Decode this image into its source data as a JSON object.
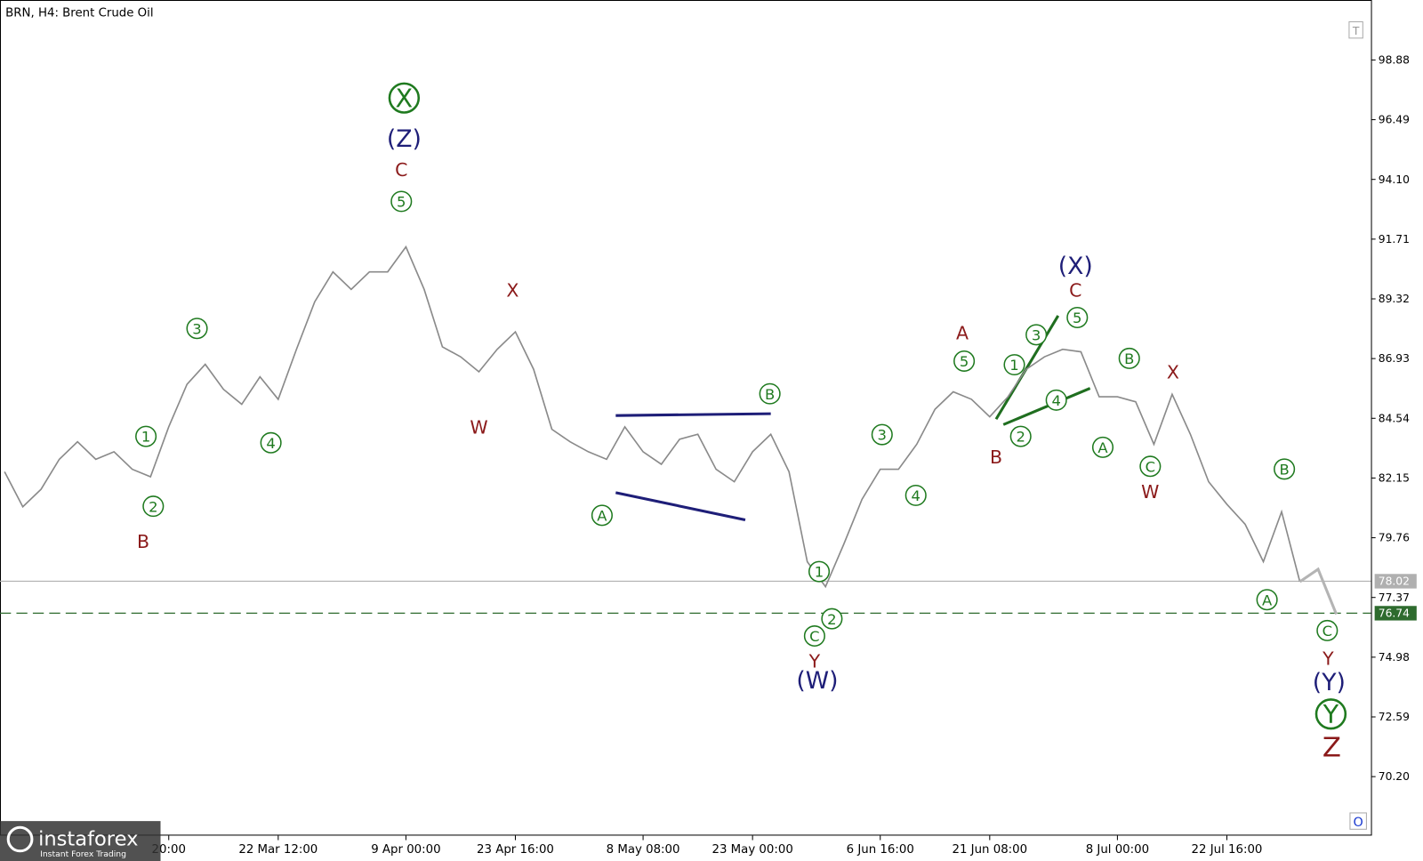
{
  "chart_data": {
    "type": "line",
    "title": "BRN, H4:  Brent Crude Oil",
    "categories": [
      null,
      null,
      null,
      null,
      null,
      null,
      null,
      null,
      null,
      "20:00",
      null,
      null,
      null,
      null,
      null,
      "22 Mar 12:00",
      null,
      null,
      null,
      null,
      null,
      null,
      "9 Apr 00:00",
      null,
      null,
      null,
      null,
      null,
      "23 Apr 16:00",
      null,
      null,
      null,
      null,
      null,
      null,
      "8 May 08:00",
      null,
      null,
      null,
      null,
      null,
      "23 May 00:00",
      null,
      null,
      null,
      null,
      null,
      null,
      "6 Jun 16:00",
      null,
      null,
      null,
      null,
      null,
      "21 Jun 08:00",
      null,
      null,
      null,
      null,
      null,
      null,
      "8 Jul 00:00",
      null,
      null,
      null,
      null,
      null,
      "22 Jul 16:00",
      null,
      null,
      null,
      null,
      null,
      null
    ],
    "series": [
      {
        "color": "#8a8a8a",
        "values": [
          82.4,
          81.0,
          81.7,
          82.9,
          83.6,
          82.9,
          83.2,
          82.5,
          82.2,
          84.2,
          85.9,
          86.7,
          85.7,
          85.1,
          86.2,
          85.3,
          87.3,
          89.2,
          90.4,
          89.7,
          90.4,
          90.4,
          91.4,
          89.7,
          87.4,
          87.0,
          86.4,
          87.3,
          88.0,
          86.5,
          84.1,
          83.6,
          83.2,
          82.9,
          84.2,
          83.2,
          82.7,
          83.7,
          83.9,
          82.5,
          82.0,
          83.2,
          83.9,
          82.4,
          78.8,
          77.8,
          79.5,
          81.3,
          82.5,
          82.5,
          83.5,
          84.9,
          85.6,
          85.3,
          84.6,
          85.4,
          86.5,
          87.0,
          87.3,
          87.2,
          85.4,
          85.4,
          85.2,
          83.5,
          85.5,
          83.9,
          82.0,
          81.1,
          80.3,
          78.8,
          80.8,
          78.0,
          null,
          null
        ]
      },
      {
        "color": "#b4b4b4",
        "values": [
          null,
          null,
          null,
          null,
          null,
          null,
          null,
          null,
          null,
          null,
          null,
          null,
          null,
          null,
          null,
          null,
          null,
          null,
          null,
          null,
          null,
          null,
          null,
          null,
          null,
          null,
          null,
          null,
          null,
          null,
          null,
          null,
          null,
          null,
          null,
          null,
          null,
          null,
          null,
          null,
          null,
          null,
          null,
          null,
          null,
          null,
          null,
          null,
          null,
          null,
          null,
          null,
          null,
          null,
          null,
          null,
          null,
          null,
          null,
          null,
          null,
          null,
          null,
          null,
          null,
          null,
          null,
          null,
          null,
          null,
          null,
          78.0,
          78.5,
          76.7
        ]
      }
    ],
    "ylim": [
      67.84,
      101.28
    ],
    "yticks": [
      {
        "value": 70.2,
        "label": "70.20"
      },
      72.59,
      74.98,
      77.37,
      79.76,
      82.15,
      84.54,
      86.93,
      89.32,
      91.71,
      {
        "value": 94.1,
        "label": "94.10"
      },
      96.49,
      98.88
    ],
    "price_lines": [
      {
        "value": 78.02,
        "color": "#b0b0b0",
        "dashed": false
      },
      {
        "value": 76.74,
        "color": "#2e6b2e",
        "dashed": true
      }
    ],
    "annotations": [
      "X",
      "(Z)",
      "C",
      "5",
      "3",
      "1",
      "2",
      "B",
      "4",
      "X",
      "W",
      "B",
      "A",
      "1",
      "2",
      "C",
      "Y",
      "(W)",
      "3",
      "4",
      "A",
      "5",
      "B",
      "1",
      "3",
      "2",
      "4",
      "(X)",
      "C",
      "5",
      "B",
      "A",
      "C",
      "W",
      "X",
      "B",
      "A",
      "C",
      "Y",
      "(Y)",
      "Y",
      "Z"
    ],
    "logo": {
      "name": "instaforex",
      "tagline": "Instant Forex Trading"
    },
    "buttons": [
      "T",
      "O"
    ]
  }
}
